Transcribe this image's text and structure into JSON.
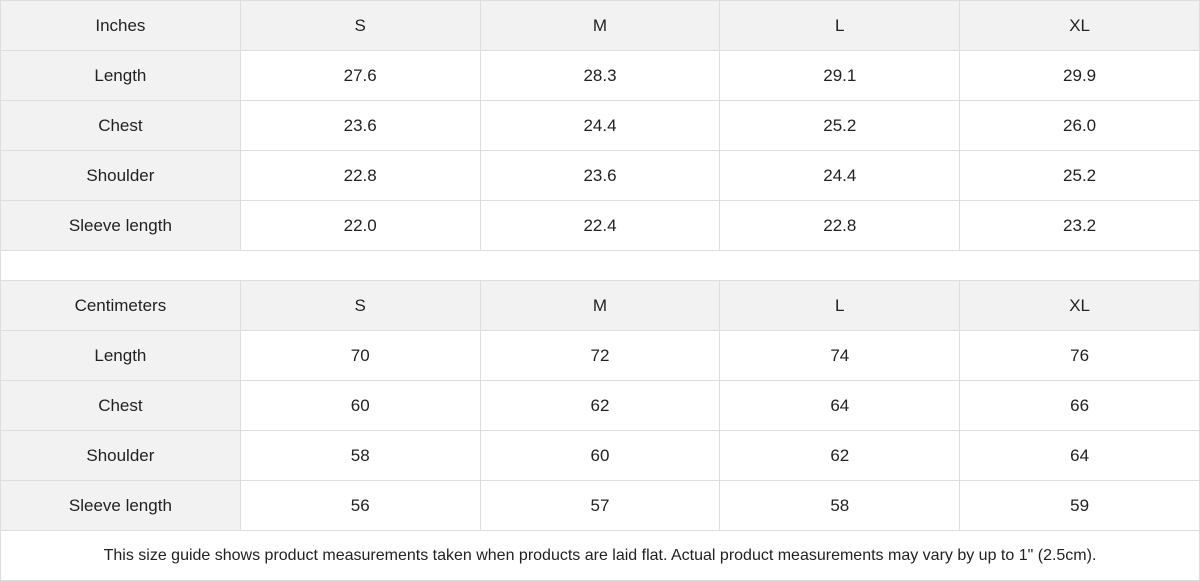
{
  "tables": [
    {
      "unit": "Inches",
      "sizes": [
        "S",
        "M",
        "L",
        "XL"
      ],
      "rows": [
        {
          "label": "Length",
          "values": [
            "27.6",
            "28.3",
            "29.1",
            "29.9"
          ]
        },
        {
          "label": "Chest",
          "values": [
            "23.6",
            "24.4",
            "25.2",
            "26.0"
          ]
        },
        {
          "label": "Shoulder",
          "values": [
            "22.8",
            "23.6",
            "24.4",
            "25.2"
          ]
        },
        {
          "label": "Sleeve length",
          "values": [
            "22.0",
            "22.4",
            "22.8",
            "23.2"
          ]
        }
      ]
    },
    {
      "unit": "Centimeters",
      "sizes": [
        "S",
        "M",
        "L",
        "XL"
      ],
      "rows": [
        {
          "label": "Length",
          "values": [
            "70",
            "72",
            "74",
            "76"
          ]
        },
        {
          "label": "Chest",
          "values": [
            "60",
            "62",
            "64",
            "66"
          ]
        },
        {
          "label": "Shoulder",
          "values": [
            "58",
            "60",
            "62",
            "64"
          ]
        },
        {
          "label": "Sleeve length",
          "values": [
            "56",
            "57",
            "58",
            "59"
          ]
        }
      ]
    }
  ],
  "note": "This size guide shows product measurements taken when products are laid flat.  Actual product measurements may vary by up to 1\" (2.5cm).",
  "colors": {
    "header_bg": "#f2f2f2",
    "border": "#dedede",
    "text": "#222222"
  }
}
